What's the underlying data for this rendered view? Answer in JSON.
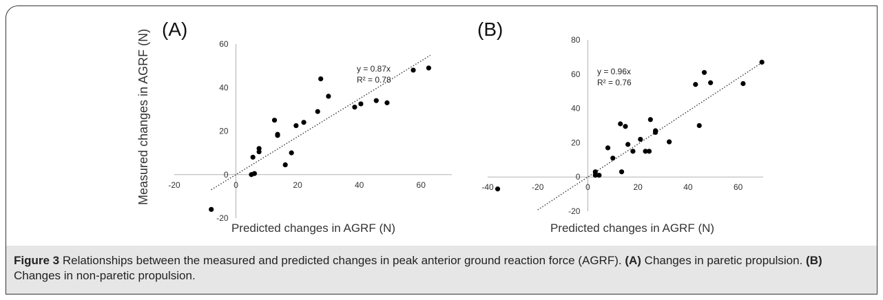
{
  "figure": {
    "caption_label": "Figure 3",
    "caption_text": " Relationships between the measured and predicted changes in peak anterior ground reaction force (AGRF). ",
    "caption_a_label": "(A)",
    "caption_a_text": " Changes in paretic propulsion. ",
    "caption_b_label": "(B)",
    "caption_b_text": " Changes in non-paretic propulsion."
  },
  "colors": {
    "points": "#000000",
    "axis": "#b0b0b0",
    "trend": "#333333",
    "caption_bg": "#e6e6e6"
  },
  "chart_data": [
    {
      "type": "scatter",
      "panel_label": "(A)",
      "ylabel": "Measured  changes in AGRF (N)",
      "xlabel": "Predicted changes in AGRF (N)",
      "xlim": [
        -20,
        70
      ],
      "ylim": [
        -20,
        60
      ],
      "xticks": [
        -20,
        0,
        20,
        40,
        60
      ],
      "yticks": [
        -20,
        0,
        20,
        40,
        60
      ],
      "grid": false,
      "trendline": {
        "slope": 0.87,
        "equation": "y = 0.87x",
        "r2": "R² = 0.78",
        "x_range": [
          -8,
          63
        ]
      },
      "points": [
        [
          -8,
          -16
        ],
        [
          5,
          0
        ],
        [
          6,
          0.5
        ],
        [
          5.5,
          8
        ],
        [
          7.5,
          12
        ],
        [
          7.5,
          10.5
        ],
        [
          12.5,
          25
        ],
        [
          13.5,
          18
        ],
        [
          13.5,
          18.5
        ],
        [
          16,
          4.5
        ],
        [
          18,
          10
        ],
        [
          19.5,
          22.5
        ],
        [
          22,
          24
        ],
        [
          26.5,
          29
        ],
        [
          27.5,
          44
        ],
        [
          30,
          36
        ],
        [
          38.5,
          31
        ],
        [
          40.5,
          32.5
        ],
        [
          45.5,
          34
        ],
        [
          49,
          33
        ],
        [
          57.5,
          48
        ],
        [
          62.5,
          49
        ]
      ]
    },
    {
      "type": "scatter",
      "panel_label": "(B)",
      "ylabel": "",
      "xlabel": "Predicted changes in AGRF (N)",
      "xlim": [
        -40,
        70
      ],
      "ylim": [
        -20,
        80
      ],
      "xticks": [
        -40,
        -20,
        0,
        20,
        40,
        60
      ],
      "yticks": [
        -20,
        0,
        20,
        40,
        60,
        80
      ],
      "grid": false,
      "trendline": {
        "slope": 0.96,
        "equation": "y = 0.96x",
        "r2": "R² = 0.76",
        "x_range": [
          -20,
          69
        ]
      },
      "points": [
        [
          -36,
          -7
        ],
        [
          3,
          1
        ],
        [
          3,
          3
        ],
        [
          4.5,
          1
        ],
        [
          8,
          17
        ],
        [
          10,
          11
        ],
        [
          13,
          31
        ],
        [
          13.5,
          3
        ],
        [
          15,
          29.5
        ],
        [
          16,
          19
        ],
        [
          18,
          15
        ],
        [
          21,
          22
        ],
        [
          23,
          15
        ],
        [
          24.5,
          15
        ],
        [
          25,
          33.5
        ],
        [
          27,
          26
        ],
        [
          27,
          27
        ],
        [
          32.5,
          20.5
        ],
        [
          43,
          54
        ],
        [
          44.5,
          30
        ],
        [
          46.5,
          61
        ],
        [
          49,
          55
        ],
        [
          62,
          54.5
        ],
        [
          69.5,
          67
        ]
      ]
    }
  ]
}
